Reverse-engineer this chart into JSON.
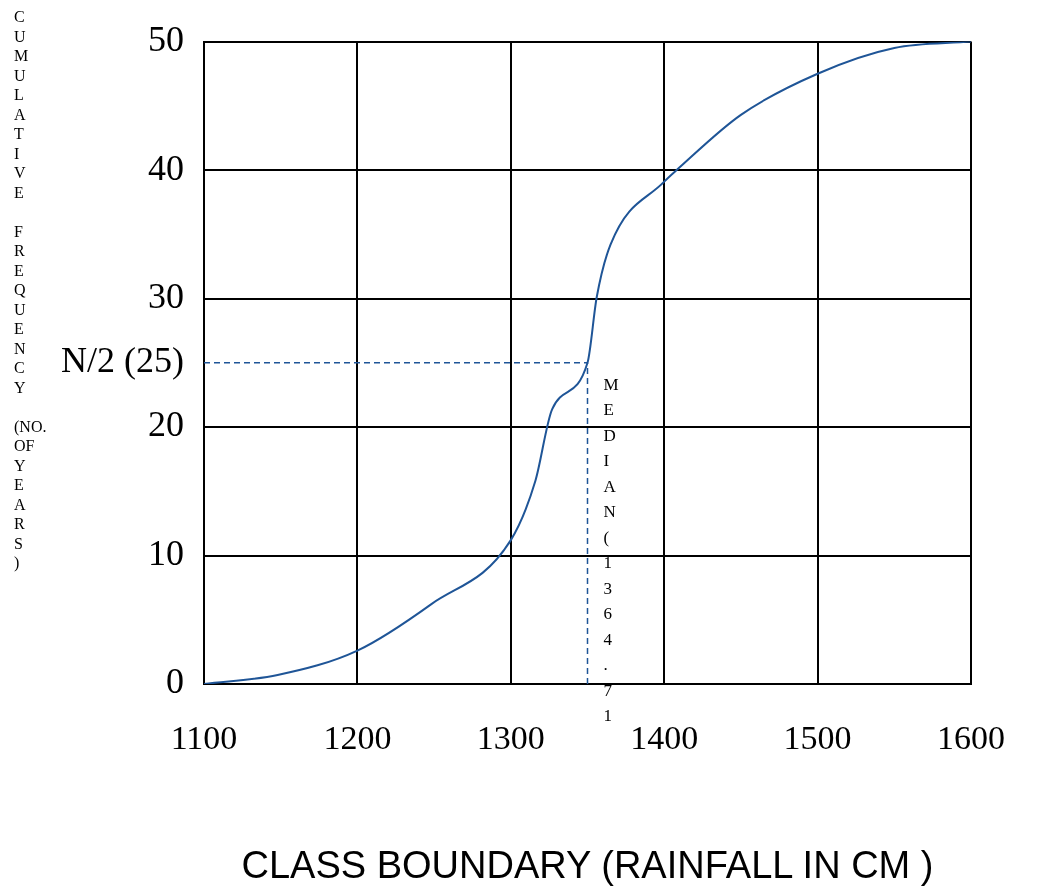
{
  "chart_data": {
    "type": "line",
    "xlabel": "CLASS BOUNDARY (RAINFALL IN CM )",
    "ylabel": "CUMULATIVE FREQUENCY (NO. OF YEARS)",
    "x": [
      1100,
      1148,
      1200,
      1248,
      1300,
      1316,
      1327,
      1350,
      1356,
      1365,
      1400,
      1409,
      1450,
      1500,
      1550,
      1600
    ],
    "series": [
      {
        "color": "#1f5597",
        "values": [
          0,
          0.7,
          2.6,
          6.2,
          11.2,
          15.8,
          21.4,
          25,
          30.1,
          34.2,
          39.1,
          40.1,
          44.3,
          47.5,
          49.5,
          50
        ]
      }
    ],
    "xlim": [
      1100,
      1600
    ],
    "xticks": [
      1100,
      1200,
      1300,
      1400,
      1500,
      1600
    ],
    "ylim": [
      0,
      50
    ],
    "yticks": [
      0,
      10,
      20,
      {
        "value": 25,
        "label": "N/2 (25)"
      },
      30,
      40,
      50
    ],
    "grid": true,
    "legend": false,
    "marker": "none",
    "line_style": "solid",
    "ref_lines": [
      {
        "axis": "y",
        "value": 25,
        "color": "#1f5597",
        "line_style": "dashed"
      },
      {
        "axis": "x",
        "value": 1350,
        "label": "MEDIAN(1364.71",
        "color": "#1f5597",
        "line_style": "dashed"
      }
    ]
  }
}
